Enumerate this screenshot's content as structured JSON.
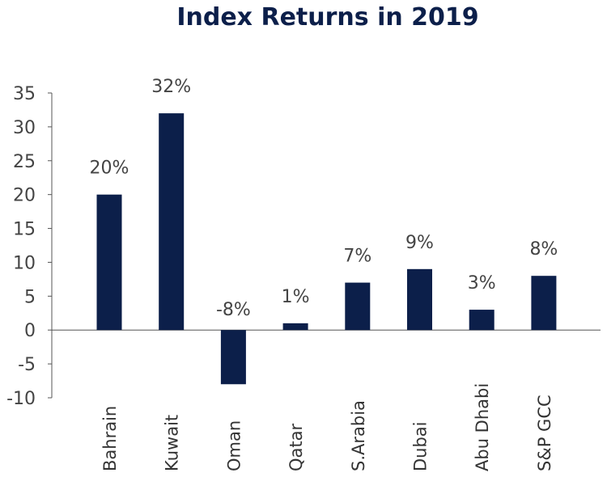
{
  "chart_data": {
    "type": "bar",
    "title": "Index Returns in 2019",
    "categories": [
      "Bahrain",
      "Kuwait",
      "Oman",
      "Qatar",
      "S.Arabia",
      "Dubai",
      "Abu Dhabi",
      "S&P GCC"
    ],
    "values": [
      20,
      32,
      -8,
      1,
      7,
      9,
      3,
      8
    ],
    "data_labels": [
      "20%",
      "32%",
      "-8%",
      "1%",
      "7%",
      "9%",
      "3%",
      "8%"
    ],
    "yticks": [
      "35",
      "30",
      "25",
      "20",
      "15",
      "10",
      "5",
      "0",
      "-5",
      "-10"
    ],
    "ylim": [
      -10,
      35
    ],
    "xlabel": "",
    "ylabel": "",
    "grid": false,
    "legend": "none",
    "colors": {
      "bar": "#0c1f4a",
      "axis": "#555555",
      "title": "#0c1f4a"
    }
  }
}
